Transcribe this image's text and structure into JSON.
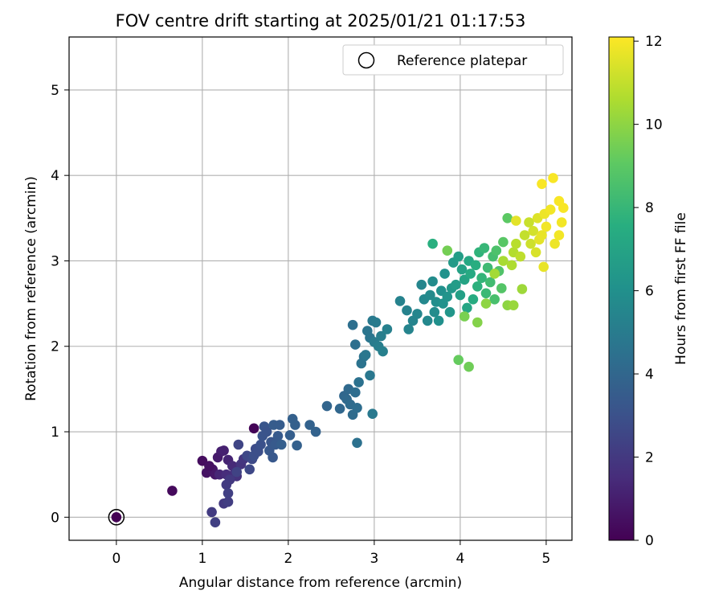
{
  "chart_data": {
    "type": "scatter",
    "title": "FOV centre drift starting at 2025/01/21 01:17:53",
    "xlabel": "Angular distance from reference (arcmin)",
    "ylabel": "Rotation from reference (arcmin)",
    "xlim": [
      -0.55,
      5.3
    ],
    "ylim": [
      -0.27,
      5.62
    ],
    "xticks": [
      0,
      1,
      2,
      3,
      4,
      5
    ],
    "yticks": [
      0,
      1,
      2,
      3,
      4,
      5
    ],
    "grid": true,
    "legend": {
      "placement": "top-right",
      "entries": [
        "Reference platepar"
      ]
    },
    "colorbar": {
      "label": "Hours from first FF file",
      "range": [
        0,
        12.1
      ],
      "ticks": [
        0,
        2,
        4,
        6,
        8,
        10,
        12
      ],
      "colormap": "viridis"
    },
    "reference_point": {
      "x": 0,
      "y": 0,
      "label": "Reference platepar"
    },
    "series": [
      {
        "color_by": "hours",
        "points": [
          [
            1.6,
            1.04,
            0.1
          ],
          [
            0.65,
            0.31,
            0.3
          ],
          [
            1.0,
            0.66,
            0.4
          ],
          [
            1.05,
            0.52,
            0.6
          ],
          [
            1.12,
            0.56,
            0.7
          ],
          [
            1.08,
            0.6,
            0.5
          ],
          [
            1.15,
            0.5,
            0.8
          ],
          [
            1.18,
            0.7,
            0.9
          ],
          [
            1.22,
            0.77,
            1.0
          ],
          [
            1.25,
            0.78,
            1.1
          ],
          [
            1.3,
            0.67,
            1.2
          ],
          [
            1.2,
            0.5,
            1.3
          ],
          [
            1.28,
            0.5,
            1.5
          ],
          [
            1.35,
            0.6,
            1.4
          ],
          [
            1.38,
            0.52,
            1.6
          ],
          [
            1.4,
            0.48,
            1.7
          ],
          [
            1.45,
            0.62,
            1.8
          ],
          [
            1.48,
            0.68,
            1.9
          ],
          [
            1.32,
            0.44,
            2.0
          ],
          [
            1.28,
            0.38,
            2.1
          ],
          [
            1.25,
            0.16,
            2.0
          ],
          [
            1.3,
            0.18,
            2.2
          ],
          [
            1.3,
            0.28,
            2.3
          ],
          [
            1.11,
            0.06,
            2.1
          ],
          [
            1.15,
            -0.06,
            2.3
          ],
          [
            1.4,
            0.53,
            2.4
          ],
          [
            1.42,
            0.85,
            2.5
          ],
          [
            1.55,
            0.56,
            2.6
          ],
          [
            1.52,
            0.72,
            2.6
          ],
          [
            1.58,
            0.68,
            2.7
          ],
          [
            1.62,
            0.8,
            2.8
          ],
          [
            1.6,
            0.72,
            2.9
          ],
          [
            1.65,
            0.77,
            2.9
          ],
          [
            1.68,
            0.85,
            3.0
          ],
          [
            1.7,
            0.95,
            3.1
          ],
          [
            1.72,
            1.06,
            3.2
          ],
          [
            1.75,
            1.0,
            3.1
          ],
          [
            1.8,
            0.88,
            3.2
          ],
          [
            1.78,
            0.78,
            3.3
          ],
          [
            1.82,
            0.7,
            3.3
          ],
          [
            1.85,
            0.85,
            3.4
          ],
          [
            1.88,
            0.95,
            3.4
          ],
          [
            1.83,
            1.08,
            3.5
          ],
          [
            1.9,
            1.08,
            3.5
          ],
          [
            1.92,
            0.85,
            3.6
          ],
          [
            2.02,
            0.96,
            3.6
          ],
          [
            2.05,
            1.15,
            3.7
          ],
          [
            2.08,
            1.08,
            3.7
          ],
          [
            2.1,
            0.84,
            3.7
          ],
          [
            2.25,
            1.08,
            3.8
          ],
          [
            2.32,
            1.0,
            3.8
          ],
          [
            2.45,
            1.3,
            3.9
          ],
          [
            2.6,
            1.27,
            4.0
          ],
          [
            2.65,
            1.42,
            4.0
          ],
          [
            2.68,
            1.38,
            4.1
          ],
          [
            2.7,
            1.5,
            4.1
          ],
          [
            2.72,
            1.32,
            4.2
          ],
          [
            2.75,
            1.2,
            4.2
          ],
          [
            2.78,
            1.46,
            4.3
          ],
          [
            2.8,
            1.28,
            4.3
          ],
          [
            2.75,
            2.25,
            4.4
          ],
          [
            2.78,
            2.02,
            4.4
          ],
          [
            2.8,
            0.87,
            4.5
          ],
          [
            2.82,
            1.58,
            4.5
          ],
          [
            2.85,
            1.8,
            4.6
          ],
          [
            2.88,
            1.88,
            4.6
          ],
          [
            2.92,
            2.18,
            4.7
          ],
          [
            2.95,
            2.1,
            4.7
          ],
          [
            2.9,
            1.9,
            4.8
          ],
          [
            2.95,
            1.66,
            4.8
          ],
          [
            2.98,
            1.21,
            4.9
          ],
          [
            2.98,
            2.3,
            4.9
          ],
          [
            3.0,
            2.05,
            5.0
          ],
          [
            3.02,
            2.28,
            5.0
          ],
          [
            3.05,
            2.0,
            5.1
          ],
          [
            3.08,
            2.12,
            5.1
          ],
          [
            3.1,
            1.94,
            5.2
          ],
          [
            3.15,
            2.2,
            5.2
          ],
          [
            3.3,
            2.53,
            5.3
          ],
          [
            3.38,
            2.42,
            5.3
          ],
          [
            3.4,
            2.2,
            5.4
          ],
          [
            3.45,
            2.3,
            5.4
          ],
          [
            3.5,
            2.38,
            5.5
          ],
          [
            3.55,
            2.72,
            5.5
          ],
          [
            3.58,
            2.55,
            5.6
          ],
          [
            3.62,
            2.3,
            5.6
          ],
          [
            3.65,
            2.6,
            5.7
          ],
          [
            3.68,
            2.76,
            5.8
          ],
          [
            3.7,
            2.4,
            5.8
          ],
          [
            3.72,
            2.52,
            5.9
          ],
          [
            3.75,
            2.3,
            6.0
          ],
          [
            3.78,
            2.65,
            6.0
          ],
          [
            3.8,
            2.5,
            6.1
          ],
          [
            3.82,
            2.85,
            6.1
          ],
          [
            3.85,
            2.58,
            6.2
          ],
          [
            3.88,
            2.4,
            6.3
          ],
          [
            3.9,
            2.68,
            6.4
          ],
          [
            3.92,
            2.98,
            6.5
          ],
          [
            3.95,
            2.72,
            6.6
          ],
          [
            3.98,
            3.05,
            6.7
          ],
          [
            4.0,
            2.6,
            6.8
          ],
          [
            4.02,
            2.9,
            6.9
          ],
          [
            4.05,
            2.78,
            7.0
          ],
          [
            4.08,
            2.45,
            7.1
          ],
          [
            4.1,
            3.0,
            7.2
          ],
          [
            4.12,
            2.85,
            7.3
          ],
          [
            4.15,
            2.55,
            7.4
          ],
          [
            4.18,
            2.95,
            7.5
          ],
          [
            3.68,
            3.2,
            7.6
          ],
          [
            4.2,
            2.7,
            7.7
          ],
          [
            4.22,
            3.1,
            7.8
          ],
          [
            4.25,
            2.8,
            7.9
          ],
          [
            4.28,
            3.15,
            8.0
          ],
          [
            4.3,
            2.62,
            8.1
          ],
          [
            4.32,
            2.92,
            8.2
          ],
          [
            4.35,
            2.75,
            8.3
          ],
          [
            4.38,
            3.05,
            8.4
          ],
          [
            4.4,
            2.55,
            8.5
          ],
          [
            4.42,
            3.12,
            8.6
          ],
          [
            4.45,
            2.88,
            8.7
          ],
          [
            4.48,
            2.68,
            8.8
          ],
          [
            4.5,
            3.22,
            8.9
          ],
          [
            4.55,
            3.5,
            9.0
          ],
          [
            3.98,
            1.84,
            9.2
          ],
          [
            4.1,
            1.76,
            9.4
          ],
          [
            3.85,
            3.12,
            9.5
          ],
          [
            4.05,
            2.35,
            9.6
          ],
          [
            4.2,
            2.28,
            9.8
          ],
          [
            4.3,
            2.5,
            10.0
          ],
          [
            4.55,
            2.48,
            10.0
          ],
          [
            4.62,
            2.48,
            10.2
          ],
          [
            4.72,
            2.67,
            10.3
          ],
          [
            4.4,
            2.85,
            10.4
          ],
          [
            4.5,
            3.0,
            10.5
          ],
          [
            4.6,
            2.95,
            10.6
          ],
          [
            4.62,
            3.1,
            10.7
          ],
          [
            4.65,
            3.2,
            10.8
          ],
          [
            4.7,
            3.05,
            10.9
          ],
          [
            4.75,
            3.3,
            11.0
          ],
          [
            4.8,
            3.45,
            11.1
          ],
          [
            4.82,
            3.2,
            11.2
          ],
          [
            4.85,
            3.35,
            11.3
          ],
          [
            4.88,
            3.1,
            11.4
          ],
          [
            4.9,
            3.5,
            11.5
          ],
          [
            4.92,
            3.25,
            11.6
          ],
          [
            4.95,
            3.3,
            11.7
          ],
          [
            4.98,
            3.55,
            11.8
          ],
          [
            5.0,
            3.4,
            11.9
          ],
          [
            4.95,
            3.9,
            12.0
          ],
          [
            5.08,
            3.97,
            12.0
          ],
          [
            5.15,
            3.7,
            12.0
          ],
          [
            5.05,
            3.6,
            11.9
          ],
          [
            5.1,
            3.2,
            11.8
          ],
          [
            5.15,
            3.3,
            11.9
          ],
          [
            4.97,
            2.93,
            11.7
          ],
          [
            5.2,
            3.62,
            12.0
          ],
          [
            4.65,
            3.47,
            11.6
          ],
          [
            5.18,
            3.45,
            11.9
          ]
        ]
      }
    ]
  }
}
